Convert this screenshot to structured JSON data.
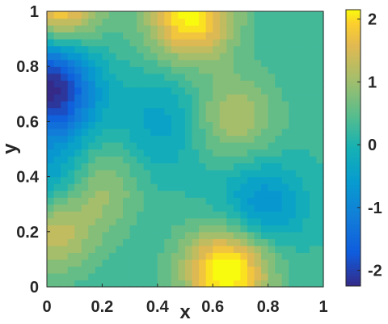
{
  "chart_data": {
    "type": "heatmap",
    "subtype": "filled-contour",
    "title": "",
    "xlabel": "x",
    "ylabel": "y",
    "xlim": [
      0,
      1
    ],
    "ylim": [
      0,
      1
    ],
    "xticks": [
      0,
      0.2,
      0.4,
      0.6,
      0.8,
      1
    ],
    "xtick_labels": [
      "0",
      "0.2",
      "0.4",
      "0.6",
      "0.8",
      "1"
    ],
    "yticks": [
      0,
      0.2,
      0.4,
      0.6,
      0.8,
      1
    ],
    "ytick_labels": [
      "0",
      "0.2",
      "0.4",
      "0.6",
      "0.8",
      "1"
    ],
    "colormap": "parula",
    "colorbar": {
      "range": [
        -2.25,
        2.15
      ],
      "ticks": [
        -2,
        -1,
        0,
        1,
        2
      ],
      "tick_labels": [
        "-2",
        "-1",
        "0",
        "1",
        "2"
      ]
    },
    "grid": false,
    "field": {
      "baseline": 0.25,
      "features": [
        {
          "x": 0.03,
          "y": 1.0,
          "amplitude": 2.1
        },
        {
          "x": 0.52,
          "y": 0.98,
          "amplitude": 2.0
        },
        {
          "x": 0.65,
          "y": 0.06,
          "amplitude": 2.2
        },
        {
          "x": 0.02,
          "y": 0.2,
          "amplitude": 1.1
        },
        {
          "x": 0.18,
          "y": 0.37,
          "amplitude": 0.9
        },
        {
          "x": 0.68,
          "y": 0.62,
          "amplitude": 0.9
        },
        {
          "x": 0.02,
          "y": 0.69,
          "amplitude": -2.2
        },
        {
          "x": 0.03,
          "y": 0.4,
          "amplitude": -1.0
        },
        {
          "x": 0.78,
          "y": 0.3,
          "amplitude": -1.0
        },
        {
          "x": 0.0,
          "y": 0.86,
          "amplitude": -1.2
        },
        {
          "x": 0.42,
          "y": 0.64,
          "amplitude": -0.5
        },
        {
          "x": 0.4,
          "y": 0.5,
          "amplitude": -0.3
        }
      ]
    }
  }
}
